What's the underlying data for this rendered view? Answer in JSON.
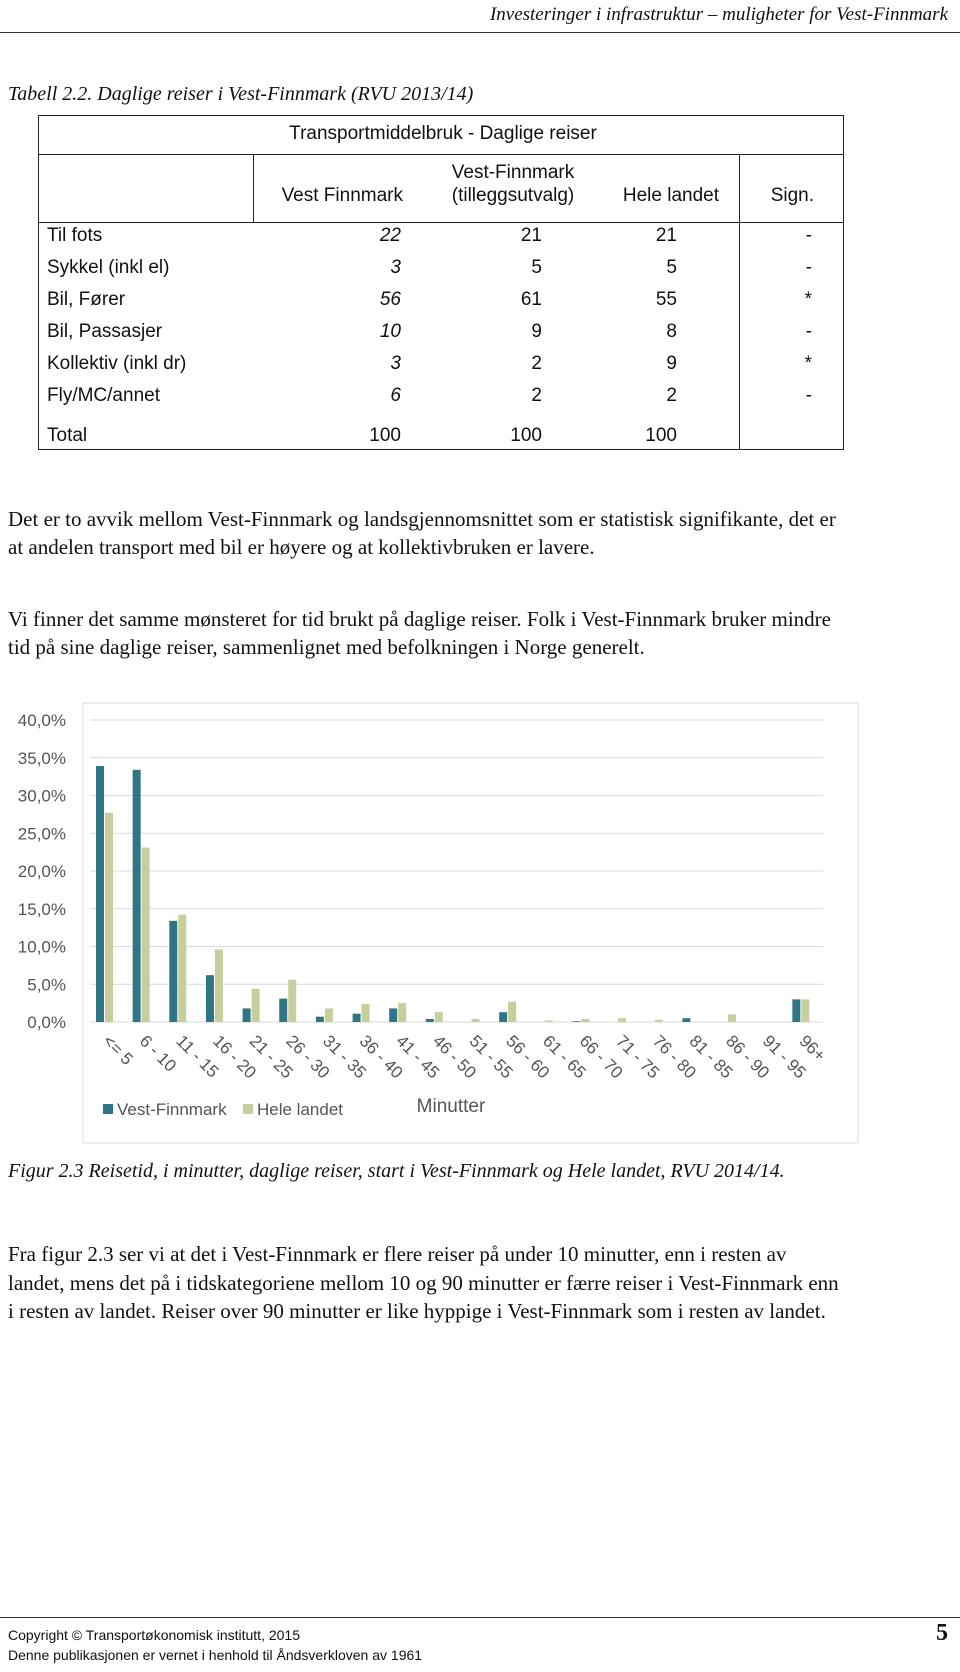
{
  "header": {
    "running_title": "Investeringer i infrastruktur – muligheter for Vest-Finnmark"
  },
  "table": {
    "caption": "Tabell 2.2. Daglige reiser i Vest-Finnmark (RVU 2013/14)",
    "title": "Transportmiddelbruk - Daglige reiser",
    "columns": [
      "Vest Finnmark",
      "Vest-Finnmark\n(tilleggsutvalg)",
      "Hele landet",
      "Sign."
    ],
    "rows": [
      [
        "Til fots",
        "22",
        "21",
        "21",
        "-"
      ],
      [
        "Sykkel (inkl el)",
        "3",
        "5",
        "5",
        "-"
      ],
      [
        "Bil, Fører",
        "56",
        "61",
        "55",
        "*"
      ],
      [
        "Bil, Passasjer",
        "10",
        "9",
        "8",
        "-"
      ],
      [
        "Kollektiv (inkl dr)",
        "3",
        "2",
        "9",
        "*"
      ],
      [
        "Fly/MC/annet",
        "6",
        "2",
        "2",
        "-"
      ],
      [
        "Total",
        "100",
        "100",
        "100",
        ""
      ]
    ]
  },
  "paragraphs": [
    "Det er to avvik mellom Vest-Finnmark og landsgjennomsnittet som er statistisk signifikante, det er at andelen transport med bil er høyere og at kollektivbruken er lavere.",
    "Vi finner det samme mønsteret for tid brukt på daglige reiser. Folk i Vest-Finnmark bruker mindre tid på sine daglige reiser, sammenlignet med befolkningen i Norge generelt."
  ],
  "chart_data": {
    "type": "bar",
    "x_label": "Minutter",
    "categories": [
      "<= 5",
      "6 - 10",
      "11 - 15",
      "16 - 20",
      "21 - 25",
      "26 - 30",
      "31 - 35",
      "36 - 40",
      "41 - 45",
      "46 - 50",
      "51 - 55",
      "56 - 60",
      "61 - 65",
      "66 - 70",
      "71 - 75",
      "76 - 80",
      "81 - 85",
      "86 - 90",
      "91 - 95",
      "96+"
    ],
    "series": [
      {
        "name": "Vest-Finnmark",
        "color": "#2f7586",
        "values": [
          33.9,
          33.4,
          13.4,
          6.2,
          1.8,
          3.1,
          0.7,
          1.1,
          1.8,
          0.4,
          0,
          1.3,
          0,
          0.1,
          0,
          0,
          0.5,
          0,
          0,
          3.0
        ]
      },
      {
        "name": "Hele landet",
        "color": "#c6cf9b",
        "values": [
          27.7,
          23.1,
          14.2,
          9.6,
          4.4,
          5.6,
          1.8,
          2.4,
          2.5,
          1.3,
          0.4,
          2.7,
          0.2,
          0.4,
          0.5,
          0.3,
          0,
          1.0,
          0,
          3.0
        ]
      }
    ],
    "ylim": [
      0,
      40
    ],
    "yticks": [
      {
        "value": 0,
        "label": "0,0%"
      },
      {
        "value": 5,
        "label": "5,0%"
      },
      {
        "value": 10,
        "label": "10,0%"
      },
      {
        "value": 15,
        "label": "15,0%"
      },
      {
        "value": 20,
        "label": "20,0%"
      },
      {
        "value": 25,
        "label": "25,0%"
      },
      {
        "value": 30,
        "label": "30,0%"
      },
      {
        "value": 35,
        "label": "35,0%"
      },
      {
        "value": 40,
        "label": "40,0%"
      }
    ],
    "grid": true
  },
  "figure_caption": "Figur 2.3 Reisetid, i minutter, daglige reiser, start i Vest-Finnmark og Hele landet, RVU 2014/14.",
  "paragraph_after": "Fra figur 2.3 ser vi at det i Vest-Finnmark er flere reiser på under 10 minutter, enn i resten av landet, mens det på i tidskategoriene mellom 10 og 90 minutter er færre reiser i Vest-Finnmark enn i resten av landet. Reiser over 90 minutter er like hyppige i Vest-Finnmark som i resten av landet.",
  "footer": {
    "copyright": "Copyright © Transportøkonomisk institutt, 2015",
    "notice": "Denne publikasjonen er vernet i henhold til Åndsverkloven av 1961",
    "page_number": "5"
  }
}
